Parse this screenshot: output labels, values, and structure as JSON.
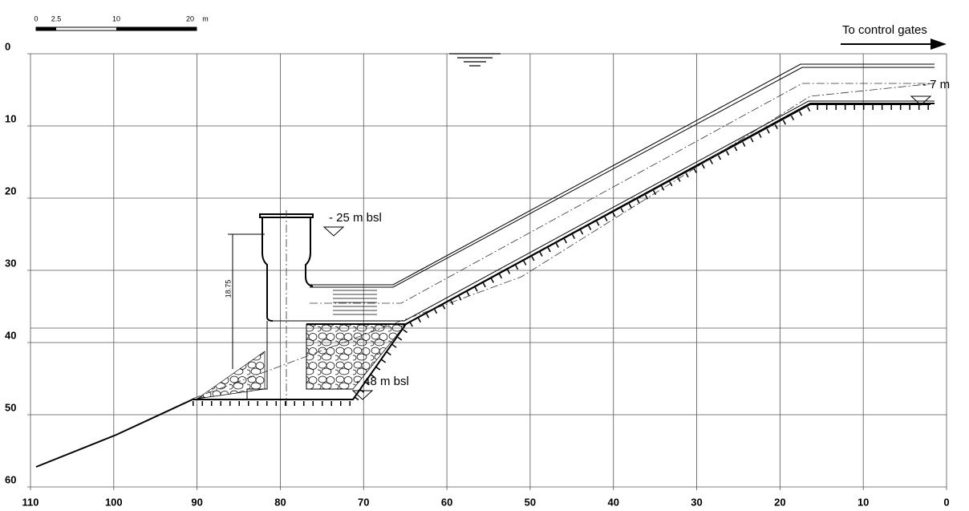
{
  "scale_bar": {
    "labels": [
      "0",
      "2.5",
      "10",
      "20"
    ],
    "unit": "m"
  },
  "axes": {
    "x_ticks": [
      110,
      100,
      90,
      80,
      70,
      60,
      50,
      40,
      30,
      20,
      10,
      0
    ],
    "y_ticks": [
      0,
      10,
      20,
      30,
      40,
      50,
      60
    ]
  },
  "annotations": {
    "flow": "To control gates",
    "level_top": "- 7 m",
    "level_intake": "- 25 m bsl",
    "level_base": "- 48 m bsl",
    "dimension": "18.75"
  }
}
